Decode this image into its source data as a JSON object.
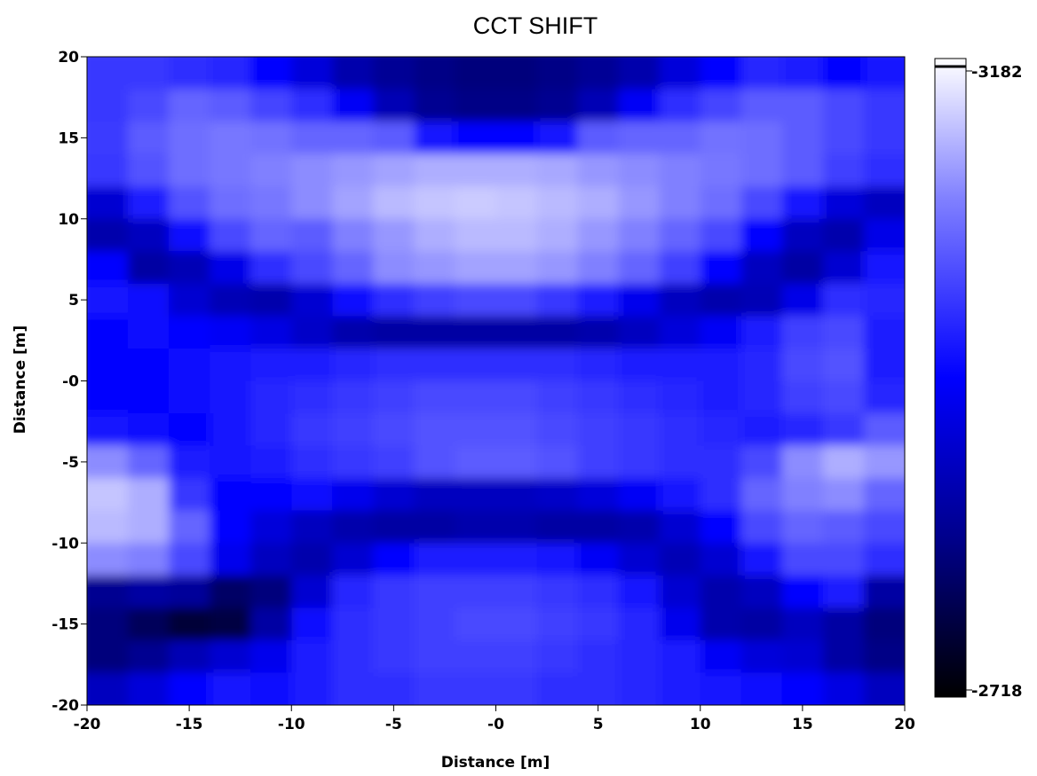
{
  "chart_data": {
    "type": "heatmap",
    "title": "CCT SHIFT",
    "xlabel": "Distance [m]",
    "ylabel": "Distance [m]",
    "xlim": [
      -20,
      20
    ],
    "ylim": [
      -20,
      20
    ],
    "x_ticks": [
      -20,
      -15,
      -10,
      -5,
      0,
      5,
      10,
      15,
      20
    ],
    "y_ticks": [
      20,
      15,
      10,
      5,
      0,
      -5,
      -10,
      -15,
      -20
    ],
    "x_tick_labels": [
      "-20",
      "-15",
      "-10",
      "-5",
      "-0",
      "5",
      "10",
      "15",
      "20"
    ],
    "y_tick_labels": [
      "20",
      "15",
      "10",
      "5",
      "-0",
      "-5",
      "-10",
      "-15",
      "-20"
    ],
    "colorbar": {
      "min_label": "2718",
      "max_label": "3182",
      "min": 2718,
      "max": 3182,
      "colors": [
        "#000000",
        "#00008c",
        "#0000ff",
        "#8080ff",
        "#ffffff"
      ]
    },
    "grid": false,
    "z_description": "normalized 0-1 approximate values on a 20x20 grid, rows from y=20 (top) to y=-20 (bottom), columns from x=-20 to x=20",
    "z": [
      [
        0.62,
        0.62,
        0.6,
        0.58,
        0.5,
        0.42,
        0.32,
        0.27,
        0.24,
        0.22,
        0.22,
        0.24,
        0.27,
        0.32,
        0.42,
        0.5,
        0.58,
        0.56,
        0.5,
        0.55
      ],
      [
        0.62,
        0.66,
        0.72,
        0.7,
        0.65,
        0.6,
        0.48,
        0.34,
        0.26,
        0.24,
        0.24,
        0.26,
        0.34,
        0.48,
        0.6,
        0.65,
        0.7,
        0.7,
        0.66,
        0.62
      ],
      [
        0.63,
        0.7,
        0.74,
        0.76,
        0.75,
        0.72,
        0.72,
        0.7,
        0.55,
        0.5,
        0.5,
        0.55,
        0.7,
        0.72,
        0.72,
        0.75,
        0.74,
        0.7,
        0.66,
        0.62
      ],
      [
        0.62,
        0.68,
        0.74,
        0.76,
        0.78,
        0.8,
        0.82,
        0.84,
        0.86,
        0.86,
        0.86,
        0.85,
        0.82,
        0.8,
        0.78,
        0.76,
        0.74,
        0.7,
        0.64,
        0.6
      ],
      [
        0.4,
        0.56,
        0.68,
        0.74,
        0.76,
        0.8,
        0.84,
        0.88,
        0.9,
        0.91,
        0.9,
        0.88,
        0.86,
        0.82,
        0.78,
        0.74,
        0.66,
        0.54,
        0.42,
        0.36
      ],
      [
        0.32,
        0.36,
        0.52,
        0.66,
        0.72,
        0.7,
        0.78,
        0.82,
        0.86,
        0.88,
        0.88,
        0.86,
        0.82,
        0.78,
        0.72,
        0.66,
        0.5,
        0.36,
        0.32,
        0.45
      ],
      [
        0.5,
        0.3,
        0.34,
        0.45,
        0.6,
        0.66,
        0.72,
        0.8,
        0.82,
        0.84,
        0.84,
        0.82,
        0.78,
        0.72,
        0.64,
        0.5,
        0.36,
        0.3,
        0.4,
        0.55
      ],
      [
        0.55,
        0.52,
        0.4,
        0.34,
        0.32,
        0.4,
        0.52,
        0.6,
        0.64,
        0.66,
        0.66,
        0.62,
        0.56,
        0.46,
        0.36,
        0.32,
        0.34,
        0.45,
        0.6,
        0.58
      ],
      [
        0.5,
        0.52,
        0.5,
        0.48,
        0.44,
        0.38,
        0.32,
        0.3,
        0.3,
        0.3,
        0.3,
        0.3,
        0.32,
        0.36,
        0.42,
        0.48,
        0.56,
        0.64,
        0.66,
        0.56
      ],
      [
        0.5,
        0.5,
        0.52,
        0.54,
        0.56,
        0.56,
        0.58,
        0.6,
        0.6,
        0.6,
        0.6,
        0.6,
        0.58,
        0.56,
        0.56,
        0.56,
        0.58,
        0.66,
        0.68,
        0.56
      ],
      [
        0.5,
        0.5,
        0.52,
        0.54,
        0.58,
        0.6,
        0.62,
        0.64,
        0.66,
        0.66,
        0.66,
        0.64,
        0.62,
        0.6,
        0.58,
        0.56,
        0.58,
        0.64,
        0.66,
        0.58
      ],
      [
        0.55,
        0.52,
        0.5,
        0.54,
        0.58,
        0.62,
        0.64,
        0.66,
        0.68,
        0.68,
        0.68,
        0.66,
        0.64,
        0.62,
        0.6,
        0.58,
        0.56,
        0.58,
        0.62,
        0.7
      ],
      [
        0.8,
        0.72,
        0.56,
        0.54,
        0.56,
        0.6,
        0.62,
        0.64,
        0.68,
        0.7,
        0.7,
        0.68,
        0.64,
        0.62,
        0.6,
        0.6,
        0.66,
        0.8,
        0.86,
        0.82
      ],
      [
        0.9,
        0.86,
        0.62,
        0.5,
        0.5,
        0.52,
        0.46,
        0.4,
        0.36,
        0.36,
        0.36,
        0.38,
        0.42,
        0.48,
        0.54,
        0.6,
        0.72,
        0.78,
        0.8,
        0.72
      ],
      [
        0.88,
        0.86,
        0.72,
        0.5,
        0.42,
        0.36,
        0.32,
        0.3,
        0.3,
        0.32,
        0.32,
        0.3,
        0.3,
        0.32,
        0.4,
        0.5,
        0.66,
        0.72,
        0.7,
        0.66
      ],
      [
        0.8,
        0.78,
        0.66,
        0.46,
        0.36,
        0.32,
        0.4,
        0.5,
        0.56,
        0.56,
        0.56,
        0.54,
        0.48,
        0.4,
        0.34,
        0.4,
        0.54,
        0.66,
        0.66,
        0.6
      ],
      [
        0.26,
        0.3,
        0.28,
        0.18,
        0.22,
        0.4,
        0.58,
        0.62,
        0.64,
        0.64,
        0.64,
        0.62,
        0.6,
        0.54,
        0.4,
        0.32,
        0.36,
        0.5,
        0.56,
        0.3
      ],
      [
        0.22,
        0.16,
        0.1,
        0.12,
        0.3,
        0.52,
        0.6,
        0.62,
        0.64,
        0.66,
        0.66,
        0.64,
        0.62,
        0.58,
        0.46,
        0.32,
        0.3,
        0.36,
        0.3,
        0.22
      ],
      [
        0.22,
        0.26,
        0.34,
        0.4,
        0.46,
        0.56,
        0.6,
        0.62,
        0.64,
        0.64,
        0.64,
        0.62,
        0.6,
        0.58,
        0.56,
        0.48,
        0.42,
        0.4,
        0.3,
        0.24
      ],
      [
        0.36,
        0.42,
        0.5,
        0.54,
        0.52,
        0.56,
        0.6,
        0.6,
        0.62,
        0.62,
        0.62,
        0.6,
        0.6,
        0.58,
        0.56,
        0.54,
        0.52,
        0.5,
        0.44,
        0.36
      ]
    ]
  }
}
